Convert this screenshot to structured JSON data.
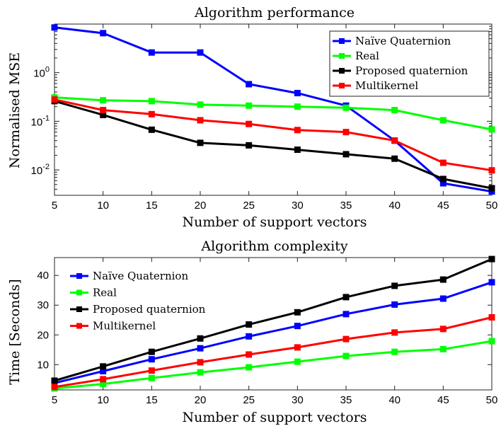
{
  "chart_data": [
    {
      "type": "line",
      "title": "Algorithm performance",
      "xlabel": "Number of support vectors",
      "ylabel": "Normalised MSE",
      "yscale": "log",
      "x": [
        5,
        10,
        15,
        20,
        25,
        30,
        35,
        40,
        45,
        50
      ],
      "xlim": [
        5,
        50
      ],
      "ylim": [
        0.003,
        10
      ],
      "xticks": [
        "5",
        "10",
        "15",
        "20",
        "25",
        "30",
        "35",
        "40",
        "45",
        "50"
      ],
      "yticks": [
        {
          "value": 0.01,
          "base": "10",
          "exp": "-2"
        },
        {
          "value": 0.1,
          "base": "10",
          "exp": "-1"
        },
        {
          "value": 1,
          "base": "10",
          "exp": "0"
        }
      ],
      "legend_position": "top-right",
      "grid": false,
      "series": [
        {
          "name": "Naïve Quaternion",
          "color": "#0000ff",
          "values": [
            8.5,
            6.5,
            2.6,
            2.6,
            0.58,
            0.38,
            0.21,
            0.04,
            0.0053,
            0.0036
          ]
        },
        {
          "name": "Real",
          "color": "#00ff00",
          "values": [
            0.31,
            0.27,
            0.26,
            0.22,
            0.21,
            0.2,
            0.19,
            0.17,
            0.105,
            0.068
          ]
        },
        {
          "name": "Proposed quaternion",
          "color": "#000000",
          "values": [
            0.26,
            0.135,
            0.067,
            0.036,
            0.032,
            0.026,
            0.021,
            0.017,
            0.0065,
            0.0042
          ]
        },
        {
          "name": "Multikernel",
          "color": "#ff0000",
          "values": [
            0.28,
            0.17,
            0.14,
            0.105,
            0.088,
            0.066,
            0.06,
            0.04,
            0.014,
            0.0098
          ]
        }
      ]
    },
    {
      "type": "line",
      "title": "Algorithm complexity",
      "xlabel": "Number of support vectors",
      "ylabel": "Time [Seconds]",
      "yscale": "linear",
      "x": [
        5,
        10,
        15,
        20,
        25,
        30,
        35,
        40,
        45,
        50
      ],
      "xlim": [
        5,
        50
      ],
      "ylim": [
        1.5,
        46
      ],
      "xticks": [
        "5",
        "10",
        "15",
        "20",
        "25",
        "30",
        "35",
        "40",
        "45",
        "50"
      ],
      "yticks": [
        {
          "value": 10,
          "label": "10"
        },
        {
          "value": 20,
          "label": "20"
        },
        {
          "value": 30,
          "label": "30"
        },
        {
          "value": 40,
          "label": "40"
        }
      ],
      "legend_position": "top-left",
      "grid": false,
      "series": [
        {
          "name": "Naïve Quaternion",
          "color": "#0000ff",
          "values": [
            3.8,
            7.8,
            11.8,
            15.5,
            19.5,
            23.0,
            27.0,
            30.2,
            32.2,
            37.7
          ]
        },
        {
          "name": "Real",
          "color": "#00ff00",
          "values": [
            2.0,
            3.5,
            5.5,
            7.4,
            9.1,
            11.0,
            12.9,
            14.3,
            15.2,
            17.9
          ]
        },
        {
          "name": "Proposed quaternion",
          "color": "#000000",
          "values": [
            4.6,
            9.4,
            14.3,
            18.8,
            23.5,
            27.6,
            32.7,
            36.5,
            38.6,
            45.5
          ]
        },
        {
          "name": "Multikernel",
          "color": "#ff0000",
          "values": [
            2.5,
            5.1,
            8.0,
            10.8,
            13.4,
            15.8,
            18.6,
            20.8,
            22.0,
            25.9
          ]
        }
      ]
    }
  ]
}
